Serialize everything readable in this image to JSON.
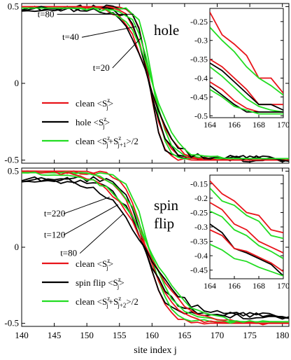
{
  "chart_data": [
    {
      "type": "line",
      "panel_label": "hole",
      "xlabel": "",
      "ylabel": "",
      "xlim": [
        140,
        181
      ],
      "ylim": [
        -0.52,
        0.52
      ],
      "y_ticks": [
        0.5,
        0,
        -0.5
      ],
      "y_tick_labels": [
        "0.5",
        "0",
        "-0.5"
      ],
      "x_ticks": [
        140,
        145,
        150,
        155,
        160,
        165,
        170,
        175,
        180
      ],
      "colors": {
        "clean": "#e8141a",
        "defect": "#000000",
        "avg": "#22dd22"
      },
      "legend": [
        {
          "key": "clean",
          "label": "clean <S",
          "sup": "z",
          "sub": "j",
          "tail": ">"
        },
        {
          "key": "defect",
          "label": "hole <S",
          "sup": "z",
          "sub": "j",
          "tail": ">"
        },
        {
          "key": "avg",
          "label": "clean <S",
          "sup": "z",
          "sub": "j",
          "mid": "+S",
          "sup2": "z",
          "sub2": "j+1",
          "tail": ">/2"
        }
      ],
      "annotations": [
        {
          "text": "t=80",
          "x": 145.0,
          "y": 0.45,
          "tx": 157.2,
          "ty": 0.45
        },
        {
          "text": "t=40",
          "x": 148.8,
          "y": 0.3,
          "tx": 157.6,
          "ty": 0.37
        },
        {
          "text": "t=20",
          "x": 153.5,
          "y": 0.1,
          "tx": 158.4,
          "ty": 0.3
        }
      ],
      "curves": [
        {
          "key": "clean",
          "t": 20,
          "x0": 140,
          "x1": 181,
          "center": 159.6,
          "width": 1.8,
          "amp": 0.5
        },
        {
          "key": "defect",
          "t": 20,
          "x0": 140,
          "x1": 181,
          "center": 159.6,
          "width": 1.8,
          "amp": 0.49
        },
        {
          "key": "avg",
          "t": 20,
          "x0": 140,
          "x1": 181,
          "center": 160.1,
          "width": 1.8,
          "amp": 0.49
        },
        {
          "key": "clean",
          "t": 40,
          "x0": 140,
          "x1": 181,
          "center": 159.6,
          "width": 2.6,
          "amp": 0.5
        },
        {
          "key": "defect",
          "t": 40,
          "x0": 140,
          "x1": 181,
          "center": 159.6,
          "width": 2.6,
          "amp": 0.49
        },
        {
          "key": "avg",
          "t": 40,
          "x0": 140,
          "x1": 181,
          "center": 160.1,
          "width": 2.6,
          "amp": 0.49
        },
        {
          "key": "clean",
          "t": 80,
          "x0": 140,
          "x1": 181,
          "center": 159.6,
          "width": 3.6,
          "amp": 0.5
        },
        {
          "key": "defect",
          "t": 80,
          "x0": 140,
          "x1": 181,
          "center": 159.6,
          "width": 3.6,
          "amp": 0.49
        },
        {
          "key": "avg",
          "t": 80,
          "x0": 140,
          "x1": 181,
          "center": 160.1,
          "width": 3.6,
          "amp": 0.49
        }
      ],
      "inset": {
        "xlim": [
          164,
          170
        ],
        "ylim": [
          -0.505,
          -0.215
        ],
        "x_ticks": [
          164,
          166,
          168,
          170
        ],
        "y_ticks": [
          -0.25,
          -0.3,
          -0.35,
          -0.4,
          -0.45,
          -0.5
        ],
        "y_tick_labels": [
          "-0.25",
          "-0.3",
          "-0.35",
          "-0.4",
          "-0.45",
          "-0.5"
        ],
        "series": [
          {
            "key": "clean",
            "x": [
              164,
              165,
              166,
              167,
              168,
              169,
              170
            ],
            "y": [
              -0.225,
              -0.285,
              -0.31,
              -0.34,
              -0.4,
              -0.4,
              -0.44
            ]
          },
          {
            "key": "avg",
            "x": [
              164,
              165,
              166,
              167,
              168,
              169,
              170
            ],
            "y": [
              -0.265,
              -0.3,
              -0.33,
              -0.37,
              -0.4,
              -0.42,
              -0.445
            ]
          },
          {
            "key": "clean",
            "x": [
              164,
              165,
              166,
              167,
              168,
              169,
              170
            ],
            "y": [
              -0.35,
              -0.37,
              -0.4,
              -0.43,
              -0.47,
              -0.47,
              -0.47
            ]
          },
          {
            "key": "defect",
            "x": [
              164,
              165,
              166,
              167,
              168,
              169,
              170
            ],
            "y": [
              -0.36,
              -0.38,
              -0.41,
              -0.44,
              -0.47,
              -0.47,
              -0.485
            ]
          },
          {
            "key": "avg",
            "x": [
              164,
              165,
              166,
              167,
              168,
              169,
              170
            ],
            "y": [
              -0.37,
              -0.395,
              -0.425,
              -0.455,
              -0.475,
              -0.485,
              -0.49
            ]
          },
          {
            "key": "clean",
            "x": [
              164,
              165,
              166,
              167,
              168,
              169,
              170
            ],
            "y": [
              -0.41,
              -0.43,
              -0.46,
              -0.48,
              -0.49,
              -0.49,
              -0.49
            ]
          },
          {
            "key": "defect",
            "x": [
              164,
              165,
              166,
              167,
              168,
              169,
              170
            ],
            "y": [
              -0.42,
              -0.445,
              -0.47,
              -0.49,
              -0.49,
              -0.49,
              -0.49
            ]
          },
          {
            "key": "avg",
            "x": [
              164,
              165,
              166,
              167,
              168,
              169,
              170
            ],
            "y": [
              -0.43,
              -0.45,
              -0.475,
              -0.485,
              -0.495,
              -0.495,
              -0.495
            ]
          }
        ]
      }
    },
    {
      "type": "line",
      "panel_label_lines": [
        "spin",
        "flip"
      ],
      "xlabel": "site index j",
      "ylabel": "",
      "xlim": [
        140,
        181
      ],
      "ylim": [
        -0.52,
        0.52
      ],
      "y_ticks": [
        0.5,
        0,
        -0.5
      ],
      "y_tick_labels": [
        "0.5",
        "0",
        "-0.5"
      ],
      "x_ticks": [
        140,
        145,
        150,
        155,
        160,
        165,
        170,
        175,
        180
      ],
      "x_tick_labels": [
        "140",
        "145",
        "150",
        "155",
        "160",
        "165",
        "170",
        "175",
        "180"
      ],
      "colors": {
        "clean": "#e8141a",
        "defect": "#000000",
        "avg": "#22dd22"
      },
      "legend": [
        {
          "key": "clean",
          "label": "clean <S",
          "sup": "z",
          "sub": "j",
          "tail": ">"
        },
        {
          "key": "defect",
          "label": "spin flip <S",
          "sup": "z",
          "sub": "j",
          "tail": ">"
        },
        {
          "key": "avg",
          "label": "clean <S",
          "sup": "z",
          "sub": "j",
          "mid": "+S",
          "sup2": "z",
          "sub2": "j+2",
          "tail": ">/2"
        }
      ],
      "annotations": [
        {
          "text": "t=220",
          "x": 146.0,
          "y": 0.22,
          "tx": 153.5,
          "ty": 0.33
        },
        {
          "text": "t=120",
          "x": 146.0,
          "y": 0.08,
          "tx": 154.8,
          "ty": 0.28
        },
        {
          "text": "t=80",
          "x": 148.5,
          "y": -0.04,
          "tx": 155.6,
          "ty": 0.22
        }
      ],
      "curves": [
        {
          "key": "clean",
          "t": 80,
          "x0": 140,
          "x1": 181,
          "center": 159.0,
          "width": 3.0,
          "amp": 0.5
        },
        {
          "key": "defect",
          "t": 80,
          "x0": 140,
          "x1": 181,
          "center": 158.8,
          "width": 3.0,
          "amp": 0.45
        },
        {
          "key": "avg",
          "t": 80,
          "x0": 140,
          "x1": 181,
          "center": 159.5,
          "width": 3.0,
          "amp": 0.49
        },
        {
          "key": "clean",
          "t": 120,
          "x0": 140,
          "x1": 181,
          "center": 159.0,
          "width": 4.3,
          "amp": 0.5
        },
        {
          "key": "defect",
          "t": 120,
          "x0": 140,
          "x1": 181,
          "center": 158.8,
          "width": 4.3,
          "amp": 0.45
        },
        {
          "key": "avg",
          "t": 120,
          "x0": 140,
          "x1": 181,
          "center": 159.5,
          "width": 4.3,
          "amp": 0.49
        },
        {
          "key": "clean",
          "t": 220,
          "x0": 140,
          "x1": 181,
          "center": 159.0,
          "width": 6.0,
          "amp": 0.5
        },
        {
          "key": "defect",
          "t": 220,
          "x0": 140,
          "x1": 181,
          "center": 158.8,
          "width": 6.0,
          "amp": 0.45
        },
        {
          "key": "avg",
          "t": 220,
          "x0": 140,
          "x1": 181,
          "center": 159.5,
          "width": 6.0,
          "amp": 0.49
        }
      ],
      "inset": {
        "xlim": [
          164,
          170
        ],
        "ylim": [
          -0.48,
          -0.12
        ],
        "x_ticks": [
          164,
          166,
          168,
          170
        ],
        "y_ticks": [
          -0.15,
          -0.2,
          -0.25,
          -0.3,
          -0.35,
          -0.4,
          -0.45
        ],
        "y_tick_labels": [
          "-0.15",
          "-0.2",
          "-0.25",
          "-0.3",
          "-0.35",
          "-0.4",
          "-0.45"
        ],
        "series": [
          {
            "key": "clean",
            "x": [
              164,
              165,
              166,
              167,
              168,
              169,
              170
            ],
            "y": [
              -0.14,
              -0.185,
              -0.21,
              -0.25,
              -0.26,
              -0.31,
              -0.32
            ]
          },
          {
            "key": "avg",
            "x": [
              164,
              165,
              166,
              167,
              168,
              169,
              170
            ],
            "y": [
              -0.165,
              -0.21,
              -0.225,
              -0.26,
              -0.28,
              -0.33,
              -0.34
            ]
          },
          {
            "key": "clean",
            "x": [
              164,
              165,
              166,
              167,
              168,
              169,
              170
            ],
            "y": [
              -0.215,
              -0.24,
              -0.29,
              -0.31,
              -0.35,
              -0.37,
              -0.39
            ]
          },
          {
            "key": "avg",
            "x": [
              164,
              165,
              166,
              167,
              168,
              169,
              170
            ],
            "y": [
              -0.245,
              -0.265,
              -0.31,
              -0.33,
              -0.365,
              -0.385,
              -0.41
            ]
          },
          {
            "key": "defect",
            "x": [
              164,
              165,
              166,
              167,
              168,
              169,
              170
            ],
            "y": [
              -0.29,
              -0.32,
              -0.375,
              -0.39,
              -0.41,
              -0.43,
              -0.47
            ]
          },
          {
            "key": "clean",
            "x": [
              164,
              165,
              166,
              167,
              168,
              169,
              170
            ],
            "y": [
              -0.31,
              -0.33,
              -0.375,
              -0.385,
              -0.405,
              -0.425,
              -0.455
            ]
          },
          {
            "key": "avg",
            "x": [
              164,
              165,
              166,
              167,
              168,
              169,
              170
            ],
            "y": [
              -0.36,
              -0.38,
              -0.41,
              -0.42,
              -0.44,
              -0.455,
              -0.47
            ]
          }
        ]
      }
    }
  ]
}
